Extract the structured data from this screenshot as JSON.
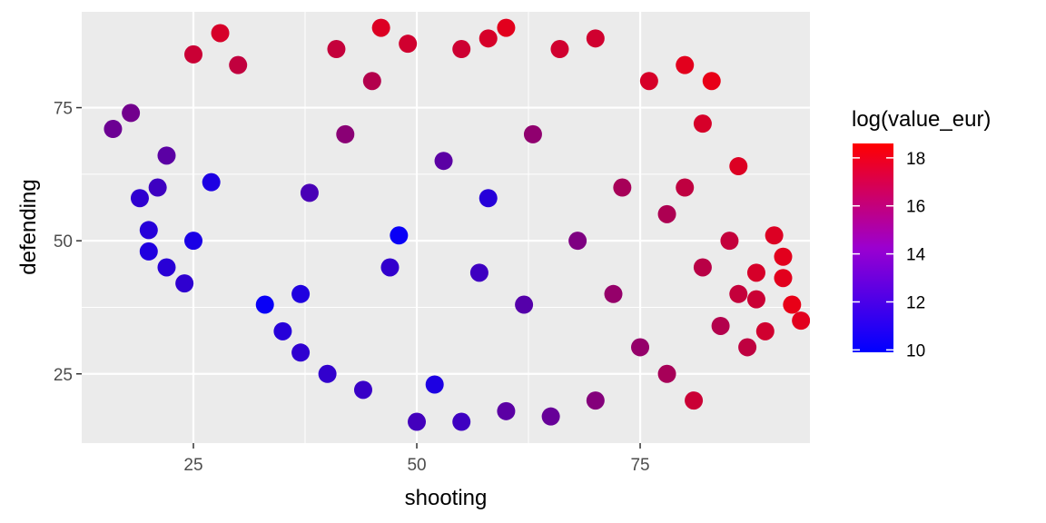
{
  "chart_data": {
    "type": "scatter",
    "xlabel": "shooting",
    "ylabel": "defending",
    "xlim": [
      12.5,
      94
    ],
    "ylim": [
      12,
      93
    ],
    "x_ticks": [
      25,
      50,
      75
    ],
    "y_ticks": [
      25,
      50,
      75
    ],
    "x_tick_labels": [
      "25",
      "50",
      "75"
    ],
    "y_tick_labels": [
      "25",
      "50",
      "75"
    ],
    "grid": true,
    "legend": {
      "title": "log(value_eur)",
      "placement": "right",
      "range": [
        9.9,
        18.6
      ],
      "ticks": [
        10,
        12,
        14,
        16,
        18
      ],
      "tick_labels": [
        "10",
        "12",
        "14",
        "16",
        "18"
      ]
    },
    "colors": {
      "low": "#0000ff",
      "high": "#ff0000",
      "panel_bg": "#ebebeb",
      "grid_major": "#ffffff",
      "tick_text": "#4d4d4d"
    },
    "points": [
      [
        16,
        71,
        13.6
      ],
      [
        18,
        74,
        13.8
      ],
      [
        19,
        58,
        11.5
      ],
      [
        20,
        48,
        11.0
      ],
      [
        20,
        52,
        11.2
      ],
      [
        21,
        60,
        12.0
      ],
      [
        22,
        45,
        11.3
      ],
      [
        22,
        66,
        13.0
      ],
      [
        24,
        42,
        11.5
      ],
      [
        25,
        50,
        10.8
      ],
      [
        25,
        85,
        16.8
      ],
      [
        27,
        61,
        10.9
      ],
      [
        28,
        89,
        17.2
      ],
      [
        30,
        83,
        16.5
      ],
      [
        33,
        38,
        10.2
      ],
      [
        35,
        33,
        11.2
      ],
      [
        37,
        29,
        11.5
      ],
      [
        37,
        40,
        11.0
      ],
      [
        38,
        59,
        12.4
      ],
      [
        40,
        25,
        11.6
      ],
      [
        41,
        86,
        16.6
      ],
      [
        42,
        70,
        14.6
      ],
      [
        44,
        22,
        11.8
      ],
      [
        45,
        80,
        16.0
      ],
      [
        46,
        90,
        17.4
      ],
      [
        47,
        45,
        11.6
      ],
      [
        48,
        51,
        10.2
      ],
      [
        49,
        87,
        17.0
      ],
      [
        50,
        16,
        12.2
      ],
      [
        52,
        23,
        10.9
      ],
      [
        53,
        65,
        13.0
      ],
      [
        55,
        16,
        12.0
      ],
      [
        55,
        86,
        16.9
      ],
      [
        57,
        44,
        12.0
      ],
      [
        58,
        58,
        11.2
      ],
      [
        58,
        88,
        17.2
      ],
      [
        60,
        90,
        17.6
      ],
      [
        60,
        18,
        13.0
      ],
      [
        62,
        38,
        12.8
      ],
      [
        63,
        70,
        14.8
      ],
      [
        65,
        17,
        13.4
      ],
      [
        66,
        86,
        17.0
      ],
      [
        68,
        50,
        14.2
      ],
      [
        70,
        88,
        17.0
      ],
      [
        70,
        20,
        14.4
      ],
      [
        72,
        40,
        15.0
      ],
      [
        73,
        60,
        15.6
      ],
      [
        75,
        30,
        15.0
      ],
      [
        76,
        80,
        17.2
      ],
      [
        78,
        25,
        15.6
      ],
      [
        78,
        55,
        15.8
      ],
      [
        80,
        83,
        17.6
      ],
      [
        80,
        60,
        16.4
      ],
      [
        81,
        20,
        16.8
      ],
      [
        82,
        45,
        16.2
      ],
      [
        82,
        72,
        17.2
      ],
      [
        83,
        80,
        17.8
      ],
      [
        84,
        34,
        16.0
      ],
      [
        85,
        50,
        16.6
      ],
      [
        86,
        64,
        17.4
      ],
      [
        86,
        40,
        16.6
      ],
      [
        87,
        30,
        16.4
      ],
      [
        88,
        39,
        16.8
      ],
      [
        89,
        33,
        17.0
      ],
      [
        90,
        51,
        17.4
      ],
      [
        91,
        47,
        17.6
      ],
      [
        91,
        43,
        17.6
      ],
      [
        92,
        38,
        17.8
      ],
      [
        93,
        35,
        17.6
      ],
      [
        88,
        44,
        17.2
      ]
    ]
  }
}
